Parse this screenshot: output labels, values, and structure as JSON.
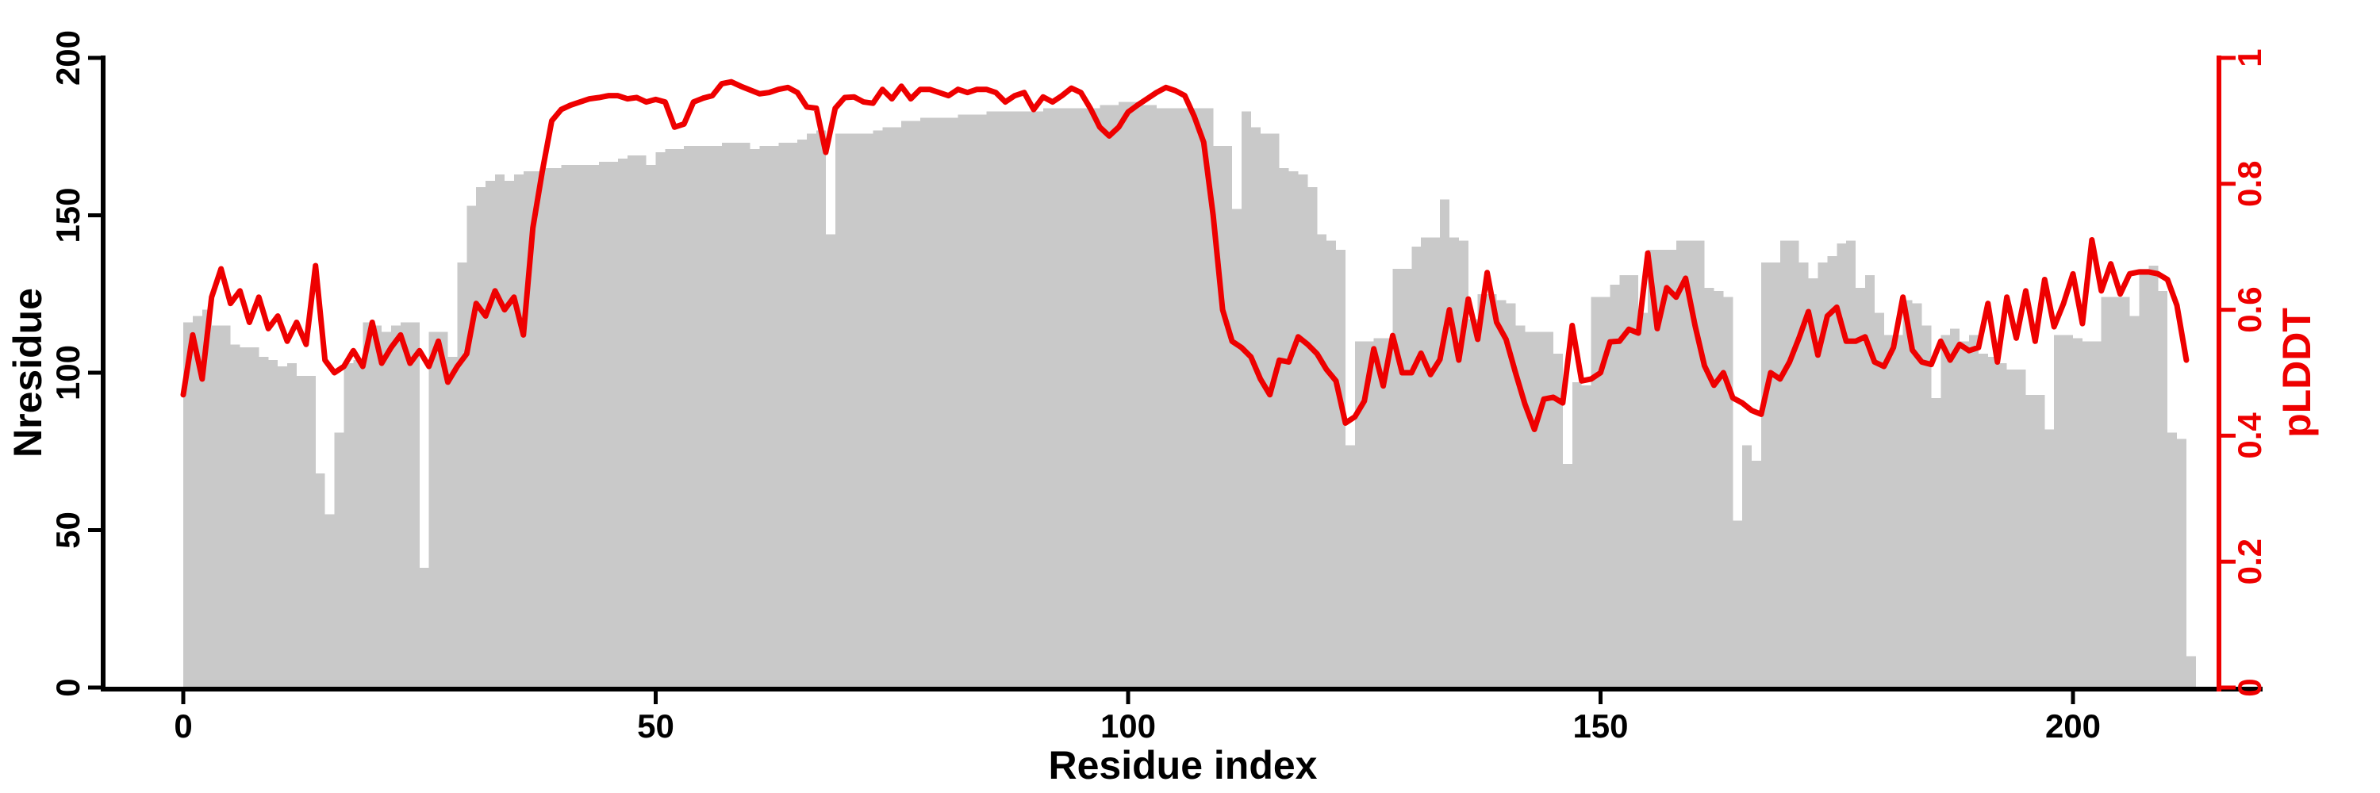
{
  "chart_data": {
    "type": "bar",
    "subtype": "dual-axis bar+line, per-residue protein model confidence plot",
    "title": "",
    "xlabel": "Residue index",
    "ylabel_left": "Nresidue",
    "ylabel_right": "pLDDT",
    "x_start": 0,
    "xlim": [
      0,
      213
    ],
    "ylim_left": [
      0,
      200
    ],
    "ylim_right": [
      0,
      1
    ],
    "xticks": [
      0,
      50,
      100,
      150,
      200
    ],
    "yticks_left": [
      0,
      50,
      100,
      150,
      200
    ],
    "yticks_right": [
      0,
      0.2,
      0.4,
      0.6,
      0.8,
      1
    ],
    "grid": false,
    "legend_position": "none",
    "bar_color": "#c9c9c9",
    "line_color": "#ee0000",
    "axis_color": "#000000",
    "right_axis_color": "#ee0000",
    "series": [
      {
        "name": "Nresidue",
        "type": "bar",
        "axis": "left",
        "values": [
          116,
          118,
          120,
          115,
          115,
          109,
          108,
          108,
          105,
          104,
          102,
          103,
          99,
          99,
          68,
          55,
          81,
          103,
          104,
          116,
          115,
          113,
          115,
          116,
          116,
          38,
          113,
          113,
          105,
          135,
          153,
          159,
          161,
          163,
          161,
          163,
          164,
          164,
          165,
          165,
          166,
          166,
          166,
          166,
          167,
          167,
          168,
          169,
          169,
          166,
          170,
          171,
          171,
          172,
          172,
          172,
          172,
          173,
          173,
          173,
          171,
          172,
          172,
          173,
          173,
          174,
          176,
          177,
          144,
          176,
          176,
          176,
          176,
          177,
          178,
          178,
          180,
          180,
          181,
          181,
          181,
          181,
          182,
          182,
          182,
          183,
          183,
          183,
          183,
          183,
          183,
          184,
          184,
          184,
          184,
          184,
          184,
          185,
          185,
          186,
          186,
          185,
          185,
          184,
          184,
          184,
          184,
          184,
          184,
          172,
          172,
          152,
          183,
          178,
          176,
          176,
          165,
          164,
          163,
          159,
          144,
          142,
          139,
          77,
          110,
          110,
          111,
          111,
          133,
          133,
          140,
          143,
          143,
          155,
          143,
          142,
          117,
          125,
          125,
          123,
          122,
          115,
          113,
          113,
          113,
          106,
          71,
          97,
          96,
          124,
          124,
          128,
          131,
          131,
          119,
          139,
          139,
          139,
          142,
          142,
          142,
          127,
          126,
          124,
          53,
          77,
          72,
          135,
          135,
          142,
          142,
          135,
          130,
          135,
          137,
          141,
          142,
          127,
          131,
          119,
          112,
          112,
          123,
          122,
          115,
          92,
          112,
          114,
          110,
          112,
          106,
          105,
          103,
          101,
          101,
          93,
          93,
          82,
          112,
          112,
          111,
          110,
          110,
          124,
          124,
          124,
          118,
          133,
          134,
          126,
          81,
          79,
          10
        ]
      },
      {
        "name": "pLDDT",
        "type": "line",
        "axis": "right",
        "values": [
          0.465,
          0.56,
          0.49,
          0.62,
          0.665,
          0.61,
          0.63,
          0.58,
          0.62,
          0.57,
          0.59,
          0.55,
          0.58,
          0.545,
          0.67,
          0.52,
          0.5,
          0.51,
          0.535,
          0.51,
          0.58,
          0.515,
          0.54,
          0.56,
          0.515,
          0.535,
          0.51,
          0.55,
          0.485,
          0.51,
          0.53,
          0.61,
          0.59,
          0.63,
          0.6,
          0.62,
          0.56,
          0.73,
          0.82,
          0.9,
          0.918,
          0.925,
          0.93,
          0.935,
          0.937,
          0.94,
          0.94,
          0.935,
          0.937,
          0.93,
          0.934,
          0.93,
          0.89,
          0.895,
          0.93,
          0.936,
          0.94,
          0.959,
          0.962,
          0.955,
          0.949,
          0.943,
          0.945,
          0.95,
          0.953,
          0.945,
          0.922,
          0.92,
          0.85,
          0.92,
          0.937,
          0.938,
          0.93,
          0.928,
          0.95,
          0.935,
          0.955,
          0.935,
          0.95,
          0.95,
          0.945,
          0.94,
          0.95,
          0.945,
          0.95,
          0.95,
          0.945,
          0.93,
          0.94,
          0.945,
          0.918,
          0.938,
          0.93,
          0.94,
          0.952,
          0.945,
          0.92,
          0.89,
          0.876,
          0.89,
          0.914,
          0.925,
          0.935,
          0.945,
          0.953,
          0.948,
          0.94,
          0.907,
          0.866,
          0.75,
          0.6,
          0.55,
          0.54,
          0.525,
          0.49,
          0.465,
          0.52,
          0.517,
          0.557,
          0.545,
          0.53,
          0.505,
          0.487,
          0.42,
          0.43,
          0.455,
          0.538,
          0.479,
          0.559,
          0.5,
          0.5,
          0.531,
          0.497,
          0.521,
          0.6,
          0.52,
          0.617,
          0.553,
          0.659,
          0.58,
          0.553,
          0.5,
          0.45,
          0.41,
          0.458,
          0.461,
          0.452,
          0.575,
          0.487,
          0.49,
          0.5,
          0.549,
          0.55,
          0.569,
          0.563,
          0.69,
          0.57,
          0.635,
          0.62,
          0.65,
          0.575,
          0.511,
          0.48,
          0.5,
          0.46,
          0.452,
          0.44,
          0.434,
          0.5,
          0.49,
          0.517,
          0.555,
          0.597,
          0.528,
          0.59,
          0.604,
          0.55,
          0.55,
          0.557,
          0.517,
          0.51,
          0.54,
          0.62,
          0.536,
          0.517,
          0.513,
          0.55,
          0.52,
          0.545,
          0.535,
          0.54,
          0.61,
          0.517,
          0.62,
          0.555,
          0.63,
          0.55,
          0.648,
          0.573,
          0.61,
          0.657,
          0.578,
          0.711,
          0.63,
          0.673,
          0.625,
          0.657,
          0.66,
          0.66,
          0.657,
          0.648,
          0.607,
          0.52
        ]
      }
    ]
  }
}
